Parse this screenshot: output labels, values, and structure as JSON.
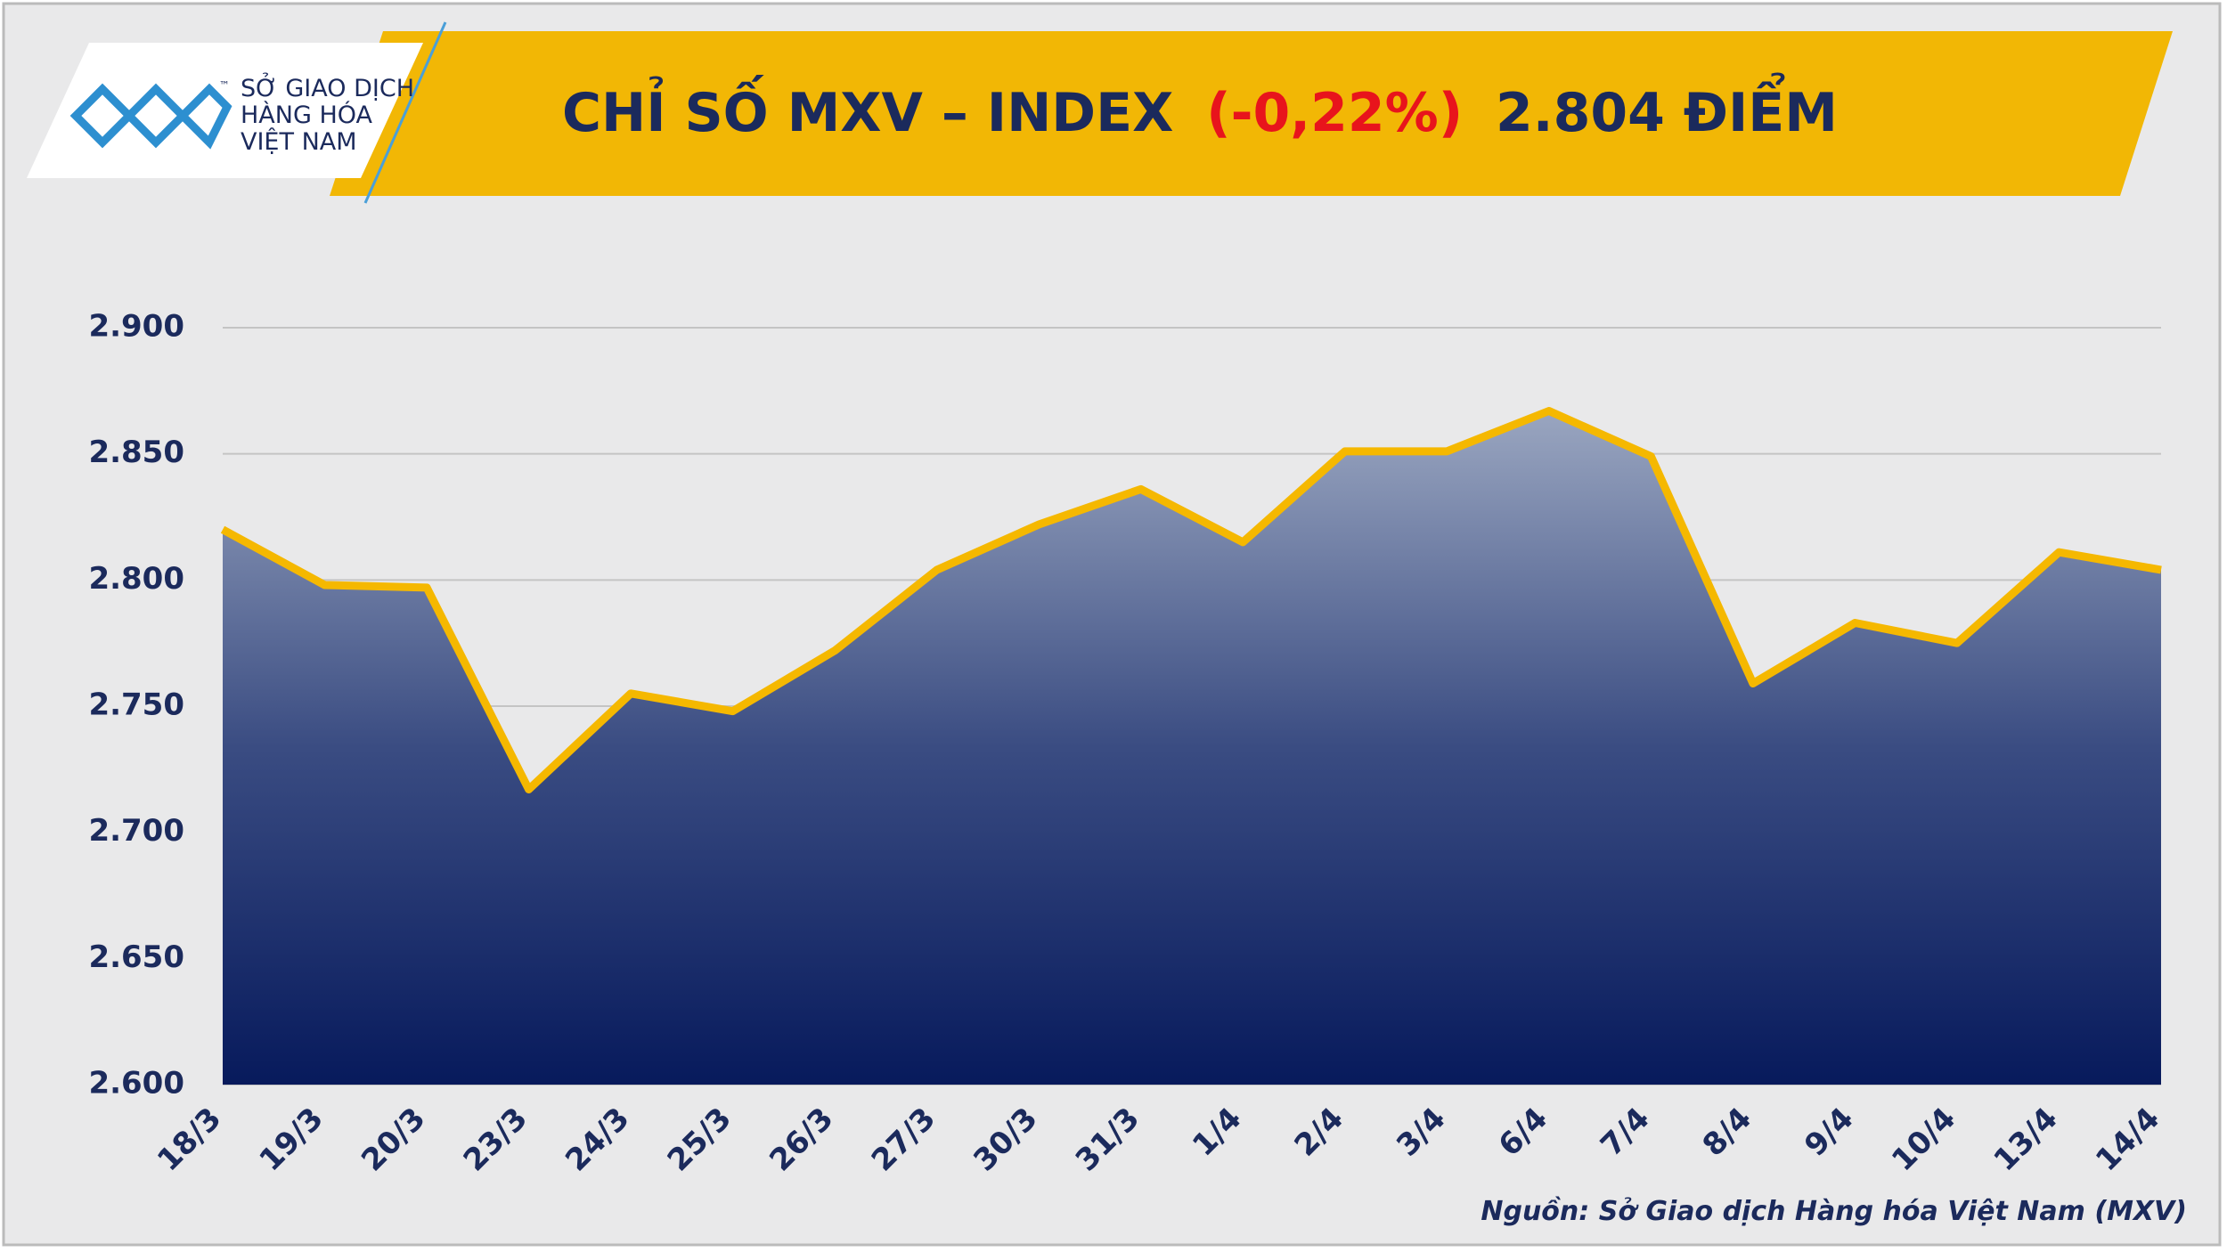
{
  "logo": {
    "lines": [
      "SỞ GIAO DỊCH",
      "HÀNG HÓA",
      "VIỆT NAM"
    ],
    "mark": "™"
  },
  "chart_data": {
    "type": "area",
    "title_parts": [
      "CHỈ SỐ MXV – INDEX",
      "(-0,22%)",
      "2.804 ĐIỂM"
    ],
    "categories": [
      "18/3",
      "19/3",
      "20/3",
      "23/3",
      "24/3",
      "25/3",
      "26/3",
      "27/3",
      "30/3",
      "31/3",
      "1/4",
      "2/4",
      "3/4",
      "6/4",
      "7/4",
      "8/4",
      "9/4",
      "10/4",
      "13/4",
      "14/4"
    ],
    "values": [
      2820,
      2798,
      2797,
      2717,
      2755,
      2748,
      2772,
      2804,
      2822,
      2836,
      2815,
      2851,
      2851,
      2867,
      2849,
      2759,
      2783,
      2775,
      2811,
      2804
    ],
    "color": "#f5b800",
    "ylim": [
      2600,
      2900
    ],
    "yticks": [
      {
        "value": 2600,
        "label": "2.600"
      },
      {
        "value": 2650,
        "label": "2.650"
      },
      {
        "value": 2700,
        "label": "2.700"
      },
      {
        "value": 2750,
        "label": "2.750"
      },
      {
        "value": 2800,
        "label": "2.800"
      },
      {
        "value": 2850,
        "label": "2.850"
      },
      {
        "value": 2900,
        "label": "2.900"
      }
    ],
    "grid": true,
    "source": "Nguồn: Sở Giao dịch Hàng hóa Việt Nam (MXV)"
  }
}
